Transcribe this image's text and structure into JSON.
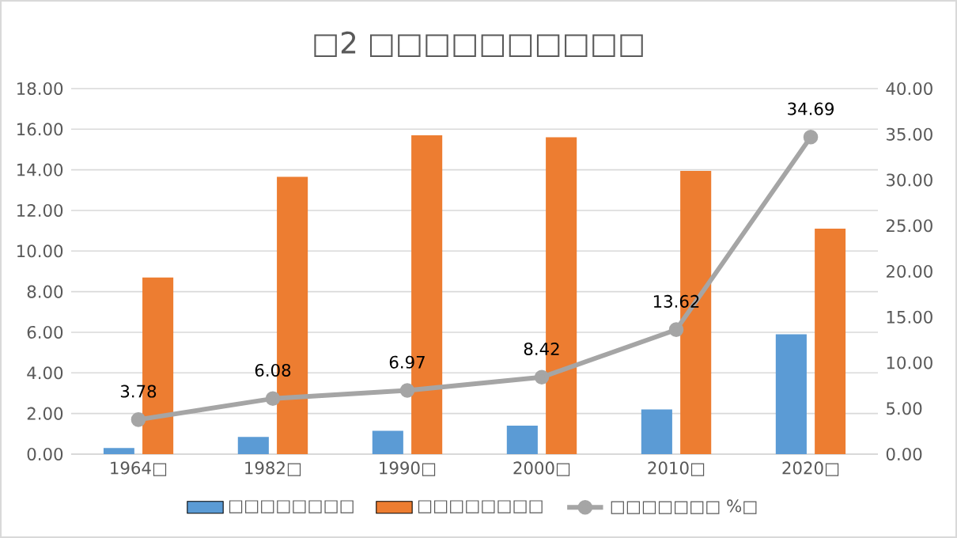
{
  "chart_data": {
    "type": "bar",
    "title": "□2 □□□□□□□□□□",
    "categories": [
      "1964□",
      "1982□",
      "1990□",
      "2000□",
      "2010□",
      "2020□"
    ],
    "series": [
      {
        "name": "□□□□□□□□",
        "color": "#5b9bd5",
        "values": [
          0.3,
          0.85,
          1.15,
          1.4,
          2.2,
          5.9
        ]
      },
      {
        "name": "□□□□□□□□",
        "color": "#ed7d31",
        "values": [
          8.7,
          13.65,
          15.7,
          15.6,
          13.95,
          11.1
        ]
      },
      {
        "name": "□□□□□□□ %□",
        "type": "line",
        "axis": "y2",
        "color": "#a5a5a5",
        "values": [
          3.78,
          6.08,
          6.97,
          8.42,
          13.62,
          34.69
        ],
        "value_labels": [
          "3.78",
          "6.08",
          "6.97",
          "8.42",
          "13.62",
          "34.69"
        ]
      }
    ],
    "ylim": [
      0,
      18
    ],
    "yticks": [
      {
        "value": 0,
        "label": "0.00"
      },
      {
        "value": 2,
        "label": "2.00"
      },
      {
        "value": 4,
        "label": "4.00"
      },
      {
        "value": 6,
        "label": "6.00"
      },
      {
        "value": 8,
        "label": "8.00"
      },
      {
        "value": 10,
        "label": "10.00"
      },
      {
        "value": 12,
        "label": "12.00"
      },
      {
        "value": 14,
        "label": "14.00"
      },
      {
        "value": 16,
        "label": "16.00"
      },
      {
        "value": 18,
        "label": "18.00"
      }
    ],
    "y2lim": [
      0,
      40
    ],
    "y2ticks": [
      {
        "value": 0,
        "label": "0.00"
      },
      {
        "value": 5,
        "label": "5.00"
      },
      {
        "value": 10,
        "label": "10.00"
      },
      {
        "value": 15,
        "label": "15.00"
      },
      {
        "value": 20,
        "label": "20.00"
      },
      {
        "value": 25,
        "label": "25.00"
      },
      {
        "value": 30,
        "label": "30.00"
      },
      {
        "value": 35,
        "label": "35.00"
      },
      {
        "value": 40,
        "label": "40.00"
      }
    ],
    "grid": "y",
    "legend": "bottom",
    "marker": "circle"
  }
}
